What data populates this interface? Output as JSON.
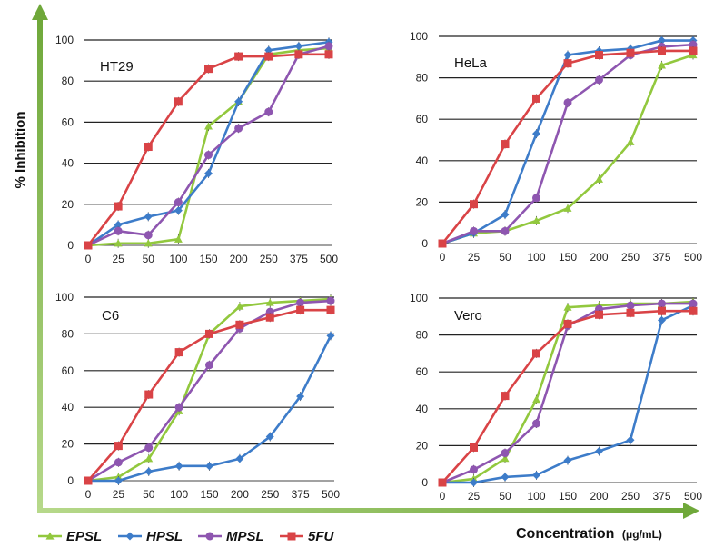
{
  "figure": {
    "ylabel": "% Inhibition",
    "xlabel": "Concentration",
    "xunit": "(μg/mL)"
  },
  "legend": [
    {
      "name": "EPSL",
      "color": "#92c83e",
      "marker": "triangle"
    },
    {
      "name": "HPSL",
      "color": "#3d7cc9",
      "marker": "diamond"
    },
    {
      "name": "MPSL",
      "color": "#8e56b0",
      "marker": "circle"
    },
    {
      "name": "5FU",
      "color": "#d94346",
      "marker": "square"
    }
  ],
  "chart_data": [
    {
      "type": "line",
      "title": "HT29",
      "categories": [
        "0",
        "25",
        "50",
        "100",
        "150",
        "200",
        "250",
        "375",
        "500"
      ],
      "ylim": [
        0,
        100
      ],
      "yticks": [
        0,
        20,
        40,
        60,
        80,
        100
      ],
      "grid": true,
      "series": [
        {
          "name": "EPSL",
          "values": [
            0,
            1,
            1,
            3,
            58,
            70,
            93,
            95,
            96
          ]
        },
        {
          "name": "HPSL",
          "values": [
            0,
            10,
            14,
            17,
            35,
            70,
            95,
            97,
            99
          ]
        },
        {
          "name": "MPSL",
          "values": [
            0,
            7,
            5,
            21,
            44,
            57,
            65,
            93,
            97
          ]
        },
        {
          "name": "5FU",
          "values": [
            0,
            19,
            48,
            70,
            86,
            92,
            92,
            93,
            93
          ]
        }
      ]
    },
    {
      "type": "line",
      "title": "HeLa",
      "categories": [
        "0",
        "25",
        "50",
        "100",
        "150",
        "200",
        "250",
        "375",
        "500"
      ],
      "ylim": [
        0,
        100
      ],
      "yticks": [
        0,
        20,
        40,
        60,
        80,
        100
      ],
      "grid": true,
      "series": [
        {
          "name": "EPSL",
          "values": [
            0,
            5,
            6,
            11,
            17,
            31,
            49,
            86,
            91
          ]
        },
        {
          "name": "HPSL",
          "values": [
            0,
            5,
            14,
            53,
            91,
            93,
            94,
            98,
            98
          ]
        },
        {
          "name": "MPSL",
          "values": [
            0,
            6,
            6,
            22,
            68,
            79,
            91,
            95,
            96
          ]
        },
        {
          "name": "5FU",
          "values": [
            0,
            19,
            48,
            70,
            87,
            91,
            92,
            93,
            93
          ]
        }
      ]
    },
    {
      "type": "line",
      "title": "C6",
      "categories": [
        "0",
        "25",
        "50",
        "100",
        "150",
        "200",
        "250",
        "375",
        "500"
      ],
      "ylim": [
        0,
        100
      ],
      "yticks": [
        0,
        20,
        40,
        60,
        80,
        100
      ],
      "grid": true,
      "series": [
        {
          "name": "EPSL",
          "values": [
            0,
            2,
            12,
            38,
            80,
            95,
            97,
            98,
            99
          ]
        },
        {
          "name": "HPSL",
          "values": [
            0,
            0,
            5,
            8,
            8,
            12,
            24,
            46,
            79
          ]
        },
        {
          "name": "MPSL",
          "values": [
            0,
            10,
            18,
            40,
            63,
            83,
            92,
            97,
            98
          ]
        },
        {
          "name": "5FU",
          "values": [
            0,
            19,
            47,
            70,
            80,
            85,
            89,
            93,
            93
          ]
        }
      ]
    },
    {
      "type": "line",
      "title": "Vero",
      "categories": [
        "0",
        "25",
        "50",
        "100",
        "150",
        "200",
        "250",
        "375",
        "500"
      ],
      "ylim": [
        0,
        100
      ],
      "yticks": [
        0,
        20,
        40,
        60,
        80,
        100
      ],
      "grid": true,
      "series": [
        {
          "name": "EPSL",
          "values": [
            0,
            2,
            13,
            45,
            95,
            96,
            97,
            97,
            98
          ]
        },
        {
          "name": "HPSL",
          "values": [
            0,
            0,
            3,
            4,
            12,
            17,
            23,
            88,
            96
          ]
        },
        {
          "name": "MPSL",
          "values": [
            0,
            7,
            16,
            32,
            85,
            94,
            96,
            97,
            97
          ]
        },
        {
          "name": "5FU",
          "values": [
            0,
            19,
            47,
            70,
            86,
            91,
            92,
            93,
            93
          ]
        }
      ]
    }
  ]
}
